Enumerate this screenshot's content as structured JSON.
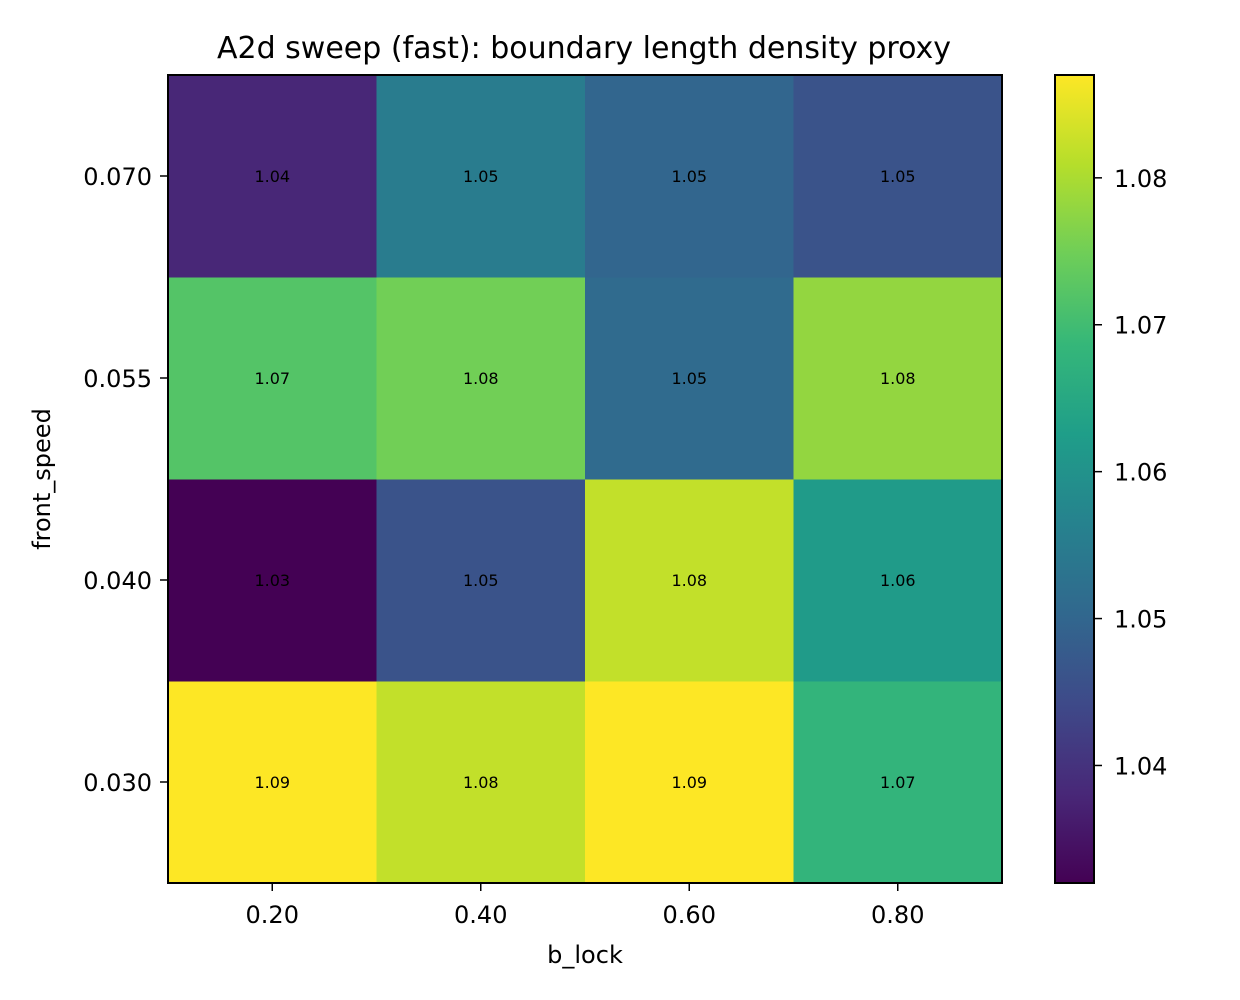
{
  "chart_data": {
    "type": "heatmap",
    "title": "A2d sweep (fast): boundary length density proxy",
    "xlabel": "b_lock",
    "ylabel": "front_speed",
    "x_categories": [
      "0.20",
      "0.40",
      "0.60",
      "0.80"
    ],
    "y_categories": [
      "0.030",
      "0.040",
      "0.055",
      "0.070"
    ],
    "values": [
      [
        1.087,
        1.082,
        1.087,
        1.068
      ],
      [
        1.032,
        1.046,
        1.082,
        1.062
      ],
      [
        1.072,
        1.075,
        1.051,
        1.078
      ],
      [
        1.038,
        1.055,
        1.05,
        1.046
      ]
    ],
    "labels": [
      [
        "1.09",
        "1.08",
        "1.09",
        "1.07"
      ],
      [
        "1.03",
        "1.05",
        "1.08",
        "1.06"
      ],
      [
        "1.07",
        "1.08",
        "1.05",
        "1.08"
      ],
      [
        "1.04",
        "1.05",
        "1.05",
        "1.05"
      ]
    ],
    "colorbar": {
      "range": [
        1.032,
        1.087
      ],
      "ticks": [
        "1.04",
        "1.05",
        "1.06",
        "1.07",
        "1.08"
      ],
      "tick_values": [
        1.04,
        1.05,
        1.06,
        1.07,
        1.08
      ],
      "colormap": "viridis"
    },
    "colormap_stops": [
      "#440154",
      "#482878",
      "#3e4a89",
      "#31688e",
      "#26828e",
      "#1f9e89",
      "#35b779",
      "#6ece58",
      "#b5de2b",
      "#fde725"
    ]
  }
}
